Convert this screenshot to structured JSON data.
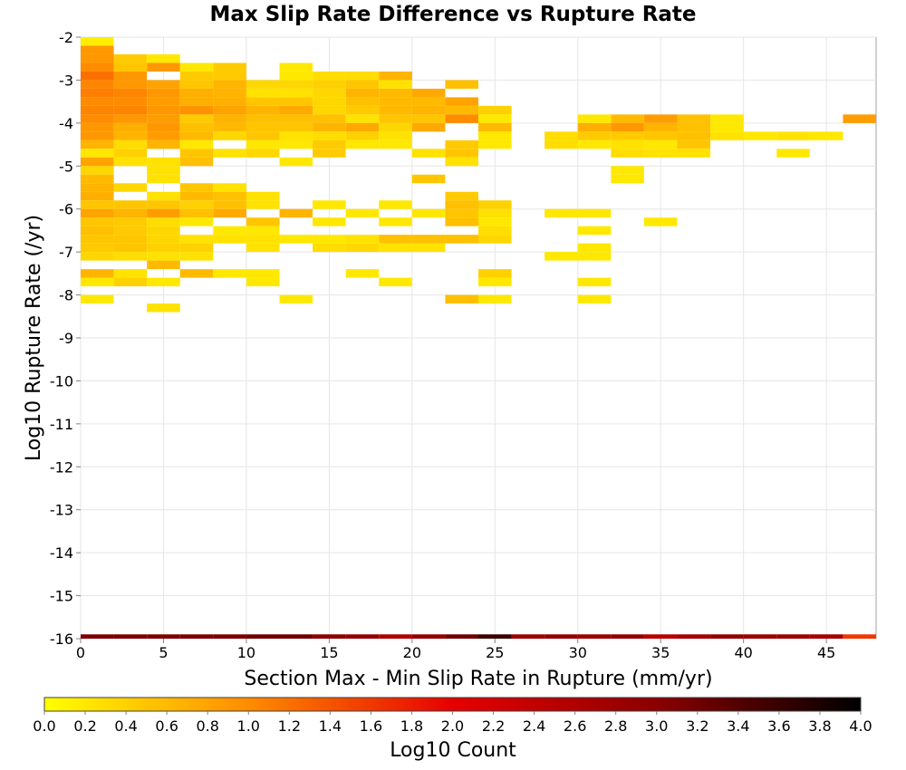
{
  "chart_data": {
    "type": "heatmap",
    "title": "Max Slip Rate Difference vs Rupture Rate",
    "xlabel": "Section Max - Min Slip Rate in Rupture (mm/yr)",
    "ylabel": "Log10 Rupture Rate (/yr)",
    "xlim": [
      0,
      48
    ],
    "ylim": [
      -16,
      -2
    ],
    "x_bin_width": 2,
    "y_bin_width": 0.2,
    "x_ticks": [
      "0",
      "5",
      "10",
      "15",
      "20",
      "25",
      "30",
      "35",
      "40",
      "45"
    ],
    "y_ticks": [
      "-2",
      "-3",
      "-4",
      "-5",
      "-6",
      "-7",
      "-8",
      "-9",
      "-10",
      "-11",
      "-12",
      "-13",
      "-14",
      "-15",
      "-16"
    ],
    "grid": true,
    "colorbar": {
      "label": "Log10 Count",
      "range": [
        0,
        4
      ],
      "ticks": [
        "0.0",
        "0.2",
        "0.4",
        "0.6",
        "0.8",
        "1.0",
        "1.2",
        "1.4",
        "1.6",
        "1.8",
        "2.0",
        "2.2",
        "2.4",
        "2.6",
        "2.8",
        "3.0",
        "3.2",
        "3.4",
        "3.6",
        "3.8",
        "4.0"
      ],
      "colors": [
        "#ffff00",
        "#ff8c00",
        "#e60000",
        "#8b0000",
        "#000000"
      ]
    },
    "cells": [
      [
        1,
        -2.1,
        0.15
      ],
      [
        1,
        -2.3,
        0.9
      ],
      [
        1,
        -2.5,
        0.9
      ],
      [
        3,
        -2.5,
        0.45
      ],
      [
        5,
        -2.5,
        0.2
      ],
      [
        1,
        -2.7,
        1.0
      ],
      [
        3,
        -2.7,
        0.5
      ],
      [
        5,
        -2.7,
        0.9
      ],
      [
        7,
        -2.7,
        0.2
      ],
      [
        9,
        -2.7,
        0.45
      ],
      [
        13,
        -2.7,
        0.2
      ],
      [
        1,
        -2.9,
        1.2
      ],
      [
        3,
        -2.9,
        0.9
      ],
      [
        7,
        -2.9,
        0.45
      ],
      [
        9,
        -2.9,
        0.45
      ],
      [
        13,
        -2.9,
        0.2
      ],
      [
        15,
        -2.9,
        0.3
      ],
      [
        17,
        -2.9,
        0.3
      ],
      [
        19,
        -2.9,
        0.65
      ],
      [
        1,
        -3.1,
        1.05
      ],
      [
        3,
        -3.1,
        0.9
      ],
      [
        5,
        -3.1,
        0.8
      ],
      [
        7,
        -3.1,
        0.5
      ],
      [
        9,
        -3.1,
        0.65
      ],
      [
        11,
        -3.1,
        0.35
      ],
      [
        13,
        -3.1,
        0.35
      ],
      [
        15,
        -3.1,
        0.4
      ],
      [
        17,
        -3.1,
        0.5
      ],
      [
        19,
        -3.1,
        0.25
      ],
      [
        23,
        -3.1,
        0.55
      ],
      [
        1,
        -3.3,
        1.1
      ],
      [
        3,
        -3.3,
        1.05
      ],
      [
        5,
        -3.3,
        0.9
      ],
      [
        7,
        -3.3,
        0.7
      ],
      [
        9,
        -3.3,
        0.65
      ],
      [
        11,
        -3.3,
        0.25
      ],
      [
        13,
        -3.3,
        0.25
      ],
      [
        15,
        -3.3,
        0.35
      ],
      [
        17,
        -3.3,
        0.65
      ],
      [
        19,
        -3.3,
        0.6
      ],
      [
        21,
        -3.3,
        0.75
      ],
      [
        1,
        -3.5,
        1.0
      ],
      [
        3,
        -3.5,
        1.0
      ],
      [
        5,
        -3.5,
        0.85
      ],
      [
        7,
        -3.5,
        0.7
      ],
      [
        9,
        -3.5,
        0.7
      ],
      [
        11,
        -3.5,
        0.5
      ],
      [
        13,
        -3.5,
        0.5
      ],
      [
        15,
        -3.5,
        0.35
      ],
      [
        17,
        -3.5,
        0.55
      ],
      [
        19,
        -3.5,
        0.6
      ],
      [
        21,
        -3.5,
        0.6
      ],
      [
        23,
        -3.5,
        0.8
      ],
      [
        1,
        -3.7,
        1.05
      ],
      [
        3,
        -3.7,
        1.05
      ],
      [
        5,
        -3.7,
        0.9
      ],
      [
        7,
        -3.7,
        0.95
      ],
      [
        9,
        -3.7,
        0.8
      ],
      [
        11,
        -3.7,
        0.65
      ],
      [
        13,
        -3.7,
        0.75
      ],
      [
        15,
        -3.7,
        0.35
      ],
      [
        17,
        -3.7,
        0.45
      ],
      [
        19,
        -3.7,
        0.6
      ],
      [
        21,
        -3.7,
        0.65
      ],
      [
        23,
        -3.7,
        0.6
      ],
      [
        25,
        -3.7,
        0.4
      ],
      [
        1,
        -3.9,
        1.0
      ],
      [
        3,
        -3.9,
        0.9
      ],
      [
        5,
        -3.9,
        0.85
      ],
      [
        7,
        -3.9,
        0.45
      ],
      [
        9,
        -3.9,
        0.65
      ],
      [
        11,
        -3.9,
        0.55
      ],
      [
        13,
        -3.9,
        0.55
      ],
      [
        15,
        -3.9,
        0.55
      ],
      [
        17,
        -3.9,
        0.25
      ],
      [
        19,
        -3.9,
        0.5
      ],
      [
        21,
        -3.9,
        0.5
      ],
      [
        23,
        -3.9,
        1.0
      ],
      [
        25,
        -3.9,
        0.2
      ],
      [
        31,
        -3.9,
        0.2
      ],
      [
        33,
        -3.9,
        0.6
      ],
      [
        35,
        -3.9,
        0.85
      ],
      [
        37,
        -3.9,
        0.55
      ],
      [
        39,
        -3.9,
        0.2
      ],
      [
        47,
        -3.9,
        0.85
      ],
      [
        1,
        -4.1,
        0.9
      ],
      [
        3,
        -4.1,
        0.7
      ],
      [
        5,
        -4.1,
        0.9
      ],
      [
        7,
        -4.1,
        0.55
      ],
      [
        9,
        -4.1,
        0.6
      ],
      [
        11,
        -4.1,
        0.5
      ],
      [
        13,
        -4.1,
        0.5
      ],
      [
        15,
        -4.1,
        0.65
      ],
      [
        17,
        -4.1,
        0.75
      ],
      [
        19,
        -4.1,
        0.35
      ],
      [
        21,
        -4.1,
        0.75
      ],
      [
        25,
        -4.1,
        0.6
      ],
      [
        31,
        -4.1,
        0.7
      ],
      [
        33,
        -4.1,
        0.9
      ],
      [
        35,
        -4.1,
        0.65
      ],
      [
        37,
        -4.1,
        0.55
      ],
      [
        39,
        -4.1,
        0.2
      ],
      [
        1,
        -4.3,
        0.9
      ],
      [
        3,
        -4.3,
        0.65
      ],
      [
        5,
        -4.3,
        0.85
      ],
      [
        7,
        -4.3,
        0.6
      ],
      [
        9,
        -4.3,
        0.35
      ],
      [
        11,
        -4.3,
        0.5
      ],
      [
        13,
        -4.3,
        0.25
      ],
      [
        15,
        -4.3,
        0.3
      ],
      [
        17,
        -4.3,
        0.4
      ],
      [
        19,
        -4.3,
        0.25
      ],
      [
        25,
        -4.3,
        0.2
      ],
      [
        29,
        -4.3,
        0.3
      ],
      [
        31,
        -4.3,
        0.45
      ],
      [
        33,
        -4.3,
        0.45
      ],
      [
        35,
        -4.3,
        0.5
      ],
      [
        37,
        -4.3,
        0.55
      ],
      [
        39,
        -4.3,
        0.25
      ],
      [
        41,
        -4.3,
        0.2
      ],
      [
        43,
        -4.3,
        0.25
      ],
      [
        45,
        -4.3,
        0.2
      ],
      [
        1,
        -4.5,
        0.65
      ],
      [
        3,
        -4.5,
        0.3
      ],
      [
        5,
        -4.5,
        0.65
      ],
      [
        7,
        -4.5,
        0.2
      ],
      [
        11,
        -4.5,
        0.2
      ],
      [
        13,
        -4.5,
        0.2
      ],
      [
        15,
        -4.5,
        0.45
      ],
      [
        17,
        -4.5,
        0.2
      ],
      [
        19,
        -4.5,
        0.2
      ],
      [
        23,
        -4.5,
        0.45
      ],
      [
        25,
        -4.5,
        0.2
      ],
      [
        29,
        -4.5,
        0.3
      ],
      [
        31,
        -4.5,
        0.2
      ],
      [
        33,
        -4.5,
        0.25
      ],
      [
        35,
        -4.5,
        0.2
      ],
      [
        37,
        -4.5,
        0.5
      ],
      [
        1,
        -4.7,
        0.2
      ],
      [
        3,
        -4.7,
        0.4
      ],
      [
        7,
        -4.7,
        0.5
      ],
      [
        9,
        -4.7,
        0.25
      ],
      [
        11,
        -4.7,
        0.35
      ],
      [
        15,
        -4.7,
        0.45
      ],
      [
        21,
        -4.7,
        0.25
      ],
      [
        23,
        -4.7,
        0.5
      ],
      [
        33,
        -4.7,
        0.3
      ],
      [
        35,
        -4.7,
        0.25
      ],
      [
        37,
        -4.7,
        0.25
      ],
      [
        43,
        -4.7,
        0.2
      ],
      [
        1,
        -4.9,
        0.8
      ],
      [
        3,
        -4.9,
        0.25
      ],
      [
        5,
        -4.9,
        0.25
      ],
      [
        7,
        -4.9,
        0.55
      ],
      [
        13,
        -4.9,
        0.2
      ],
      [
        23,
        -4.9,
        0.25
      ],
      [
        1,
        -5.1,
        0.35
      ],
      [
        5,
        -5.1,
        0.25
      ],
      [
        33,
        -5.1,
        0.2
      ],
      [
        1,
        -5.3,
        0.6
      ],
      [
        5,
        -5.3,
        0.25
      ],
      [
        21,
        -5.3,
        0.5
      ],
      [
        33,
        -5.3,
        0.2
      ],
      [
        1,
        -5.5,
        0.65
      ],
      [
        3,
        -5.5,
        0.35
      ],
      [
        7,
        -5.5,
        0.5
      ],
      [
        9,
        -5.5,
        0.25
      ],
      [
        1,
        -5.7,
        0.7
      ],
      [
        5,
        -5.7,
        0.25
      ],
      [
        7,
        -5.7,
        0.6
      ],
      [
        9,
        -5.7,
        0.55
      ],
      [
        11,
        -5.7,
        0.25
      ],
      [
        23,
        -5.7,
        0.45
      ],
      [
        1,
        -5.9,
        0.5
      ],
      [
        3,
        -5.9,
        0.5
      ],
      [
        5,
        -5.9,
        0.5
      ],
      [
        7,
        -5.9,
        0.4
      ],
      [
        9,
        -5.9,
        0.55
      ],
      [
        11,
        -5.9,
        0.25
      ],
      [
        15,
        -5.9,
        0.2
      ],
      [
        19,
        -5.9,
        0.2
      ],
      [
        23,
        -5.9,
        0.55
      ],
      [
        25,
        -5.9,
        0.4
      ],
      [
        1,
        -6.1,
        0.8
      ],
      [
        3,
        -6.1,
        0.65
      ],
      [
        5,
        -6.1,
        0.85
      ],
      [
        7,
        -6.1,
        0.55
      ],
      [
        9,
        -6.1,
        0.75
      ],
      [
        13,
        -6.1,
        0.65
      ],
      [
        17,
        -6.1,
        0.2
      ],
      [
        21,
        -6.1,
        0.2
      ],
      [
        23,
        -6.1,
        0.5
      ],
      [
        25,
        -6.1,
        0.25
      ],
      [
        29,
        -6.1,
        0.2
      ],
      [
        31,
        -6.1,
        0.2
      ],
      [
        1,
        -6.3,
        0.5
      ],
      [
        3,
        -6.3,
        0.45
      ],
      [
        5,
        -6.3,
        0.3
      ],
      [
        7,
        -6.3,
        0.2
      ],
      [
        11,
        -6.3,
        0.5
      ],
      [
        15,
        -6.3,
        0.2
      ],
      [
        19,
        -6.3,
        0.2
      ],
      [
        23,
        -6.3,
        0.55
      ],
      [
        25,
        -6.3,
        0.2
      ],
      [
        35,
        -6.3,
        0.2
      ],
      [
        1,
        -6.5,
        0.55
      ],
      [
        3,
        -6.5,
        0.45
      ],
      [
        5,
        -6.5,
        0.35
      ],
      [
        9,
        -6.5,
        0.2
      ],
      [
        11,
        -6.5,
        0.2
      ],
      [
        25,
        -6.5,
        0.3
      ],
      [
        31,
        -6.5,
        0.2
      ],
      [
        1,
        -6.7,
        0.5
      ],
      [
        3,
        -6.7,
        0.5
      ],
      [
        5,
        -6.7,
        0.35
      ],
      [
        7,
        -6.7,
        0.25
      ],
      [
        9,
        -6.7,
        0.25
      ],
      [
        11,
        -6.7,
        0.25
      ],
      [
        13,
        -6.7,
        0.2
      ],
      [
        15,
        -6.7,
        0.2
      ],
      [
        17,
        -6.7,
        0.25
      ],
      [
        19,
        -6.7,
        0.55
      ],
      [
        21,
        -6.7,
        0.55
      ],
      [
        23,
        -6.7,
        0.55
      ],
      [
        25,
        -6.7,
        0.35
      ],
      [
        1,
        -6.9,
        0.45
      ],
      [
        3,
        -6.9,
        0.5
      ],
      [
        5,
        -6.9,
        0.4
      ],
      [
        7,
        -6.9,
        0.4
      ],
      [
        11,
        -6.9,
        0.25
      ],
      [
        15,
        -6.9,
        0.3
      ],
      [
        17,
        -6.9,
        0.35
      ],
      [
        19,
        -6.9,
        0.25
      ],
      [
        21,
        -6.9,
        0.25
      ],
      [
        31,
        -6.9,
        0.2
      ],
      [
        1,
        -7.1,
        0.35
      ],
      [
        3,
        -7.1,
        0.3
      ],
      [
        5,
        -7.1,
        0.25
      ],
      [
        7,
        -7.1,
        0.25
      ],
      [
        29,
        -7.1,
        0.2
      ],
      [
        31,
        -7.1,
        0.2
      ],
      [
        5,
        -7.3,
        0.6
      ],
      [
        1,
        -7.5,
        0.65
      ],
      [
        3,
        -7.5,
        0.25
      ],
      [
        7,
        -7.5,
        0.6
      ],
      [
        9,
        -7.5,
        0.2
      ],
      [
        11,
        -7.5,
        0.2
      ],
      [
        17,
        -7.5,
        0.2
      ],
      [
        25,
        -7.5,
        0.4
      ],
      [
        1,
        -7.7,
        0.2
      ],
      [
        3,
        -7.7,
        0.4
      ],
      [
        5,
        -7.7,
        0.2
      ],
      [
        11,
        -7.7,
        0.2
      ],
      [
        19,
        -7.7,
        0.2
      ],
      [
        25,
        -7.7,
        0.2
      ],
      [
        31,
        -7.7,
        0.2
      ],
      [
        1,
        -8.1,
        0.2
      ],
      [
        13,
        -8.1,
        0.2
      ],
      [
        23,
        -8.1,
        0.55
      ],
      [
        25,
        -8.1,
        0.2
      ],
      [
        31,
        -8.1,
        0.2
      ],
      [
        5,
        -8.3,
        0.25
      ],
      [
        5,
        -16.0,
        3.1
      ],
      [
        7,
        -16.0,
        3.1
      ],
      [
        9,
        -16.0,
        3.1
      ],
      [
        11,
        -16.0,
        3.2
      ],
      [
        13,
        -16.0,
        3.2
      ],
      [
        15,
        -16.0,
        3.0
      ],
      [
        17,
        -16.0,
        2.9
      ],
      [
        19,
        -16.0,
        2.6
      ],
      [
        21,
        -16.0,
        2.9
      ],
      [
        23,
        -16.0,
        3.2
      ],
      [
        25,
        -16.0,
        3.6
      ],
      [
        27,
        -16.0,
        2.8
      ],
      [
        29,
        -16.0,
        2.9
      ],
      [
        31,
        -16.0,
        2.8
      ],
      [
        33,
        -16.0,
        2.9
      ],
      [
        35,
        -16.0,
        2.5
      ],
      [
        37,
        -16.0,
        2.7
      ],
      [
        39,
        -16.0,
        2.9
      ],
      [
        41,
        -16.0,
        2.8
      ],
      [
        43,
        -16.0,
        2.8
      ],
      [
        45,
        -16.0,
        2.7
      ],
      [
        47,
        -16.0,
        1.6
      ],
      [
        1,
        -16.0,
        3.1
      ],
      [
        3,
        -16.0,
        3.1
      ]
    ]
  }
}
